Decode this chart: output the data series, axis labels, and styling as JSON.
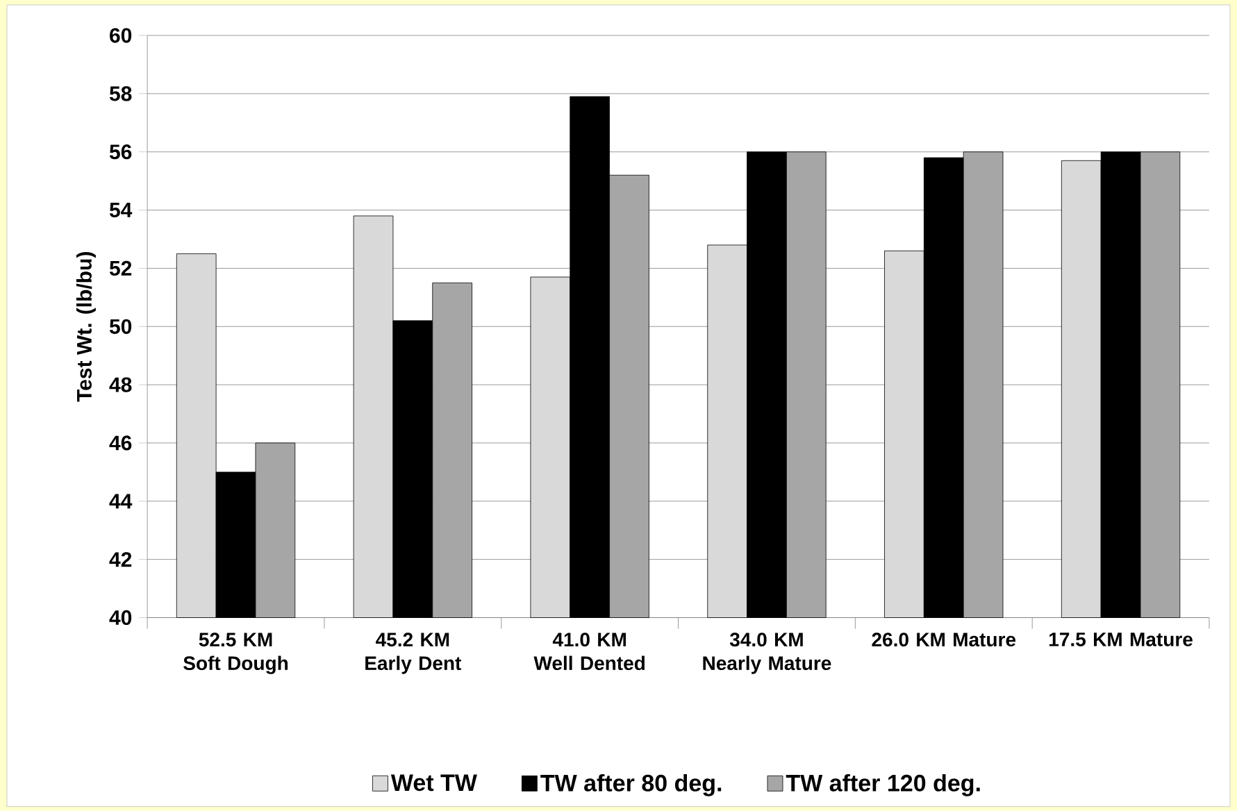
{
  "chart_data": {
    "type": "bar",
    "ylabel": "Test Wt. (lb/bu)",
    "categories": [
      "52.5 KM Soft Dough",
      "45.2 KM Early Dent",
      "41.0 KM Well Dented",
      "34.0 KM Nearly Mature",
      "26.0 KM Mature",
      "17.5 KM Mature"
    ],
    "series": [
      {
        "name": "Wet TW",
        "color": "#d9d9d9",
        "values": [
          52.5,
          53.8,
          51.7,
          52.8,
          52.6,
          55.7
        ]
      },
      {
        "name": "TW after 80 deg.",
        "color": "#000000",
        "values": [
          45.0,
          50.2,
          57.9,
          56.0,
          55.8,
          56.0
        ]
      },
      {
        "name": "TW after 120 deg.",
        "color": "#a6a6a6",
        "values": [
          46.0,
          51.5,
          55.2,
          56.0,
          56.0,
          56.0
        ]
      }
    ],
    "ylim": [
      40,
      60
    ],
    "yticks": [
      40,
      42,
      44,
      46,
      48,
      50,
      52,
      54,
      56,
      58,
      60
    ],
    "grid": "y",
    "legend": "bottom"
  }
}
